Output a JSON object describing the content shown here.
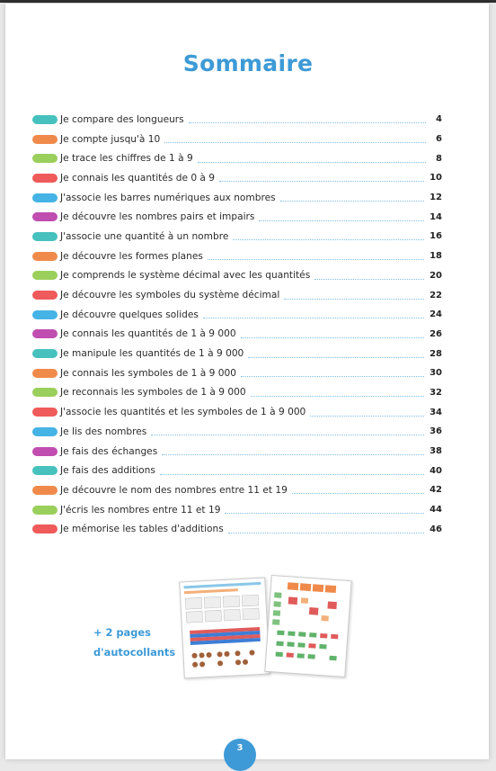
{
  "title": "Sommaire",
  "toc": [
    {
      "label": "Je compare des longueurs",
      "page": "4",
      "color": "#46c1bd"
    },
    {
      "label": "Je compte jusqu'à 10",
      "page": "6",
      "color": "#f08a4b"
    },
    {
      "label": "Je trace les chiffres de 1 à 9",
      "page": "8",
      "color": "#9bcf5b"
    },
    {
      "label": "Je connais les quantités de 0 à 9",
      "page": "10",
      "color": "#ef5a5a"
    },
    {
      "label": "J'associe les barres numériques aux nombres",
      "page": "12",
      "color": "#45b3e5"
    },
    {
      "label": "Je découvre les nombres pairs et impairs",
      "page": "14",
      "color": "#c04db0"
    },
    {
      "label": "J'associe une quantité à un nombre",
      "page": "16",
      "color": "#46c1bd"
    },
    {
      "label": "Je découvre les formes planes",
      "page": "18",
      "color": "#f08a4b"
    },
    {
      "label": "Je comprends le système décimal avec les quantités",
      "page": "20",
      "color": "#9bcf5b"
    },
    {
      "label": "Je découvre les symboles du système décimal",
      "page": "22",
      "color": "#ef5a5a"
    },
    {
      "label": "Je découvre quelques solides",
      "page": "24",
      "color": "#45b3e5"
    },
    {
      "label": "Je connais les quantités de 1 à 9 000",
      "page": "26",
      "color": "#c04db0"
    },
    {
      "label": "Je manipule les quantités de 1 à 9 000",
      "page": "28",
      "color": "#46c1bd"
    },
    {
      "label": "Je connais les symboles de 1 à 9 000",
      "page": "30",
      "color": "#f08a4b"
    },
    {
      "label": "Je reconnais les symboles de 1 à 9 000",
      "page": "32",
      "color": "#9bcf5b"
    },
    {
      "label": "J'associe les quantités et les symboles de 1 à 9 000",
      "page": "34",
      "color": "#ef5a5a"
    },
    {
      "label": "Je lis des nombres",
      "page": "36",
      "color": "#45b3e5"
    },
    {
      "label": "Je fais des échanges",
      "page": "38",
      "color": "#c04db0"
    },
    {
      "label": "Je fais des additions",
      "page": "40",
      "color": "#46c1bd"
    },
    {
      "label": "Je découvre le nom des nombres entre 11 et 19",
      "page": "42",
      "color": "#f08a4b"
    },
    {
      "label": "J'écris les nombres entre 11 et 19",
      "page": "44",
      "color": "#9bcf5b"
    },
    {
      "label": "Je mémorise les tables d'additions",
      "page": "46",
      "color": "#ef5a5a"
    }
  ],
  "promo": {
    "line1": "+ 2 pages",
    "line2": "d'autocollants"
  },
  "page_number": "3",
  "accent_color": "#3d9ad6"
}
